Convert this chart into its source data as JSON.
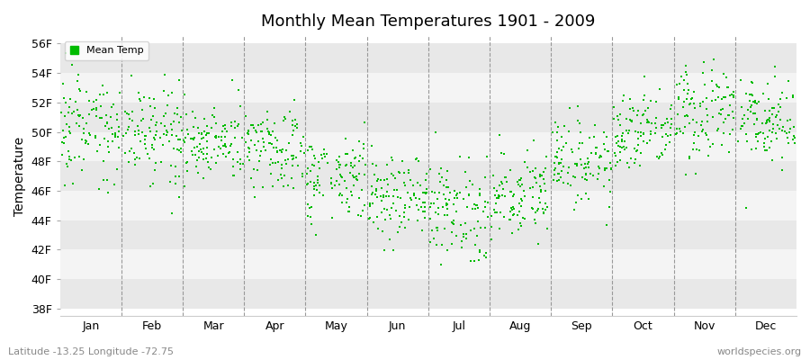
{
  "title": "Monthly Mean Temperatures 1901 - 2009",
  "ylabel": "Temperature",
  "xlabel_labels": [
    "Jan",
    "Feb",
    "Mar",
    "Apr",
    "May",
    "Jun",
    "Jul",
    "Aug",
    "Sep",
    "Oct",
    "Nov",
    "Dec"
  ],
  "yticks": [
    38,
    40,
    42,
    44,
    46,
    48,
    50,
    52,
    54,
    56
  ],
  "ytick_labels": [
    "38F",
    "40F",
    "42F",
    "44F",
    "46F",
    "48F",
    "50F",
    "52F",
    "54F",
    "56F"
  ],
  "ylim": [
    37.5,
    56.5
  ],
  "dot_color": "#00BB00",
  "dot_size": 3,
  "legend_label": "Mean Temp",
  "subtitle_left": "Latitude -13.25 Longitude -72.75",
  "subtitle_right": "worldspecies.org",
  "bg_color": "#ffffff",
  "plot_bg_color": "#ffffff",
  "band_light": "#f4f4f4",
  "band_dark": "#e8e8e8",
  "years": 109,
  "monthly_means": [
    50.2,
    50.1,
    49.4,
    49.0,
    47.0,
    45.4,
    44.5,
    45.9,
    48.1,
    50.0,
    51.2,
    50.6
  ],
  "monthly_stds": [
    1.6,
    1.6,
    1.4,
    1.4,
    1.4,
    1.5,
    1.6,
    1.4,
    1.4,
    1.4,
    1.6,
    1.5
  ],
  "seed": 7
}
